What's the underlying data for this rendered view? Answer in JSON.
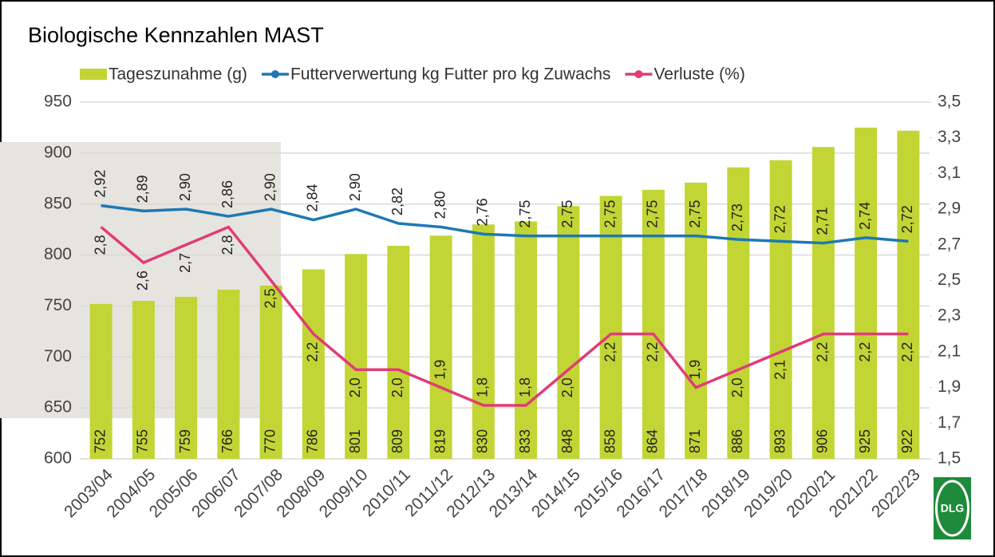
{
  "chart_data": {
    "type": "bar_line",
    "title": "Biologische Kennzahlen MAST",
    "logo": "DLG",
    "categories": [
      "2003/04",
      "2004/05",
      "2005/06",
      "2006/07",
      "2007/08",
      "2008/09",
      "2009/10",
      "2010/11",
      "2011/12",
      "2012/13",
      "2013/14",
      "2014/15",
      "2015/16",
      "2016/17",
      "2017/18",
      "2018/19",
      "2019/20",
      "2020/21",
      "2021/22",
      "2022/23"
    ],
    "series": [
      {
        "name": "Tageszunahme (g)",
        "type": "bar",
        "color": "#c2d534",
        "axis": "y",
        "values": [
          752,
          755,
          759,
          766,
          770,
          786,
          801,
          809,
          819,
          830,
          833,
          848,
          858,
          864,
          871,
          886,
          893,
          906,
          925,
          922
        ]
      },
      {
        "name": "Futterverwertung kg Futter pro kg Zuwachs",
        "type": "line",
        "color": "#1f78b4",
        "axis": "y2",
        "values": [
          2.92,
          2.89,
          2.9,
          2.86,
          2.9,
          2.84,
          2.9,
          2.82,
          2.8,
          2.76,
          2.75,
          2.75,
          2.75,
          2.75,
          2.75,
          2.73,
          2.72,
          2.71,
          2.74,
          2.72
        ],
        "value_labels": [
          "2,92",
          "2,89",
          "2,90",
          "2,86",
          "2,90",
          "2,84",
          "2,90",
          "2,82",
          "2,80",
          "2,76",
          "2,75",
          "2,75",
          "2,75",
          "2,75",
          "2,75",
          "2,73",
          "2,72",
          "2,71",
          "2,74",
          "2,72"
        ]
      },
      {
        "name": "Verluste (%)",
        "type": "line",
        "color": "#e03c78",
        "axis": "y2",
        "values": [
          2.8,
          2.6,
          2.7,
          2.8,
          2.5,
          2.2,
          2.0,
          2.0,
          1.9,
          1.8,
          1.8,
          2.0,
          2.2,
          2.2,
          1.9,
          2.0,
          2.1,
          2.2,
          2.2,
          2.2
        ],
        "value_labels": [
          "2,8",
          "2,6",
          "2,7",
          "2,8",
          "2,5",
          "2,2",
          "2,0",
          "2,0",
          "1,9",
          "1,8",
          "1,8",
          "2,0",
          "2,2",
          "2,2",
          "1,9",
          "2,0",
          "2,1",
          "2,2",
          "2,2",
          "2,2"
        ]
      }
    ],
    "ylim": [
      600,
      950
    ],
    "yticks": [
      600,
      650,
      700,
      750,
      800,
      850,
      900,
      950
    ],
    "y2lim": [
      1.5,
      3.5
    ],
    "y2ticks": [
      {
        "value": 1.5,
        "label": "1,5"
      },
      {
        "value": 1.7,
        "label": "1,7"
      },
      {
        "value": 1.9,
        "label": "1,9"
      },
      {
        "value": 2.1,
        "label": "2,1"
      },
      {
        "value": 2.3,
        "label": "2,3"
      },
      {
        "value": 2.5,
        "label": "2,5"
      },
      {
        "value": 2.7,
        "label": "2,7"
      },
      {
        "value": 2.9,
        "label": "2,9"
      },
      {
        "value": 3.1,
        "label": "3,1"
      },
      {
        "value": 3.3,
        "label": "3,3"
      },
      {
        "value": 3.5,
        "label": "3,5"
      }
    ],
    "grid": true,
    "legend": "top"
  }
}
